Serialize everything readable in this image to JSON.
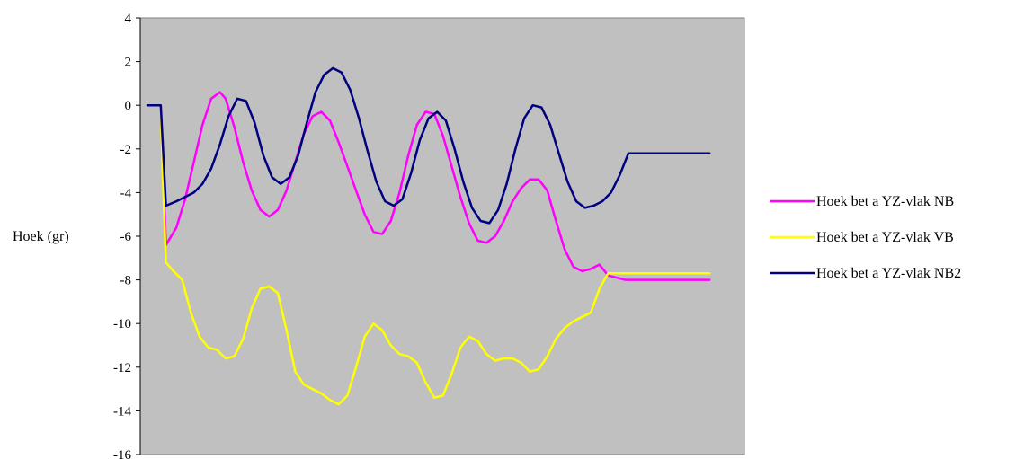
{
  "chart_data": {
    "type": "line",
    "title": "",
    "xlabel": "",
    "ylabel": "Hoek (gr)",
    "ylim": [
      -16,
      4
    ],
    "yticks": [
      4,
      2,
      0,
      -2,
      -4,
      -6,
      -8,
      -10,
      -12,
      -14,
      -16
    ],
    "xlim": [
      0,
      100
    ],
    "grid": false,
    "legend_position": "right",
    "plot_background": "#c0c0c0",
    "series": [
      {
        "name": "Hoek bet a YZ-vlak NB",
        "color": "#ff00ff",
        "x": [
          0,
          2.3,
          2.5,
          3.2,
          5,
          6.5,
          8,
          9.5,
          11,
          12.5,
          13.5,
          15,
          16.5,
          18,
          19.5,
          21,
          22.5,
          24,
          25.5,
          27,
          28.5,
          30,
          31.5,
          33,
          34.5,
          36,
          37.5,
          39,
          40.5,
          42,
          43.5,
          45,
          46.5,
          48,
          49.5,
          51,
          52.5,
          54,
          55.5,
          57,
          58.5,
          60,
          61.5,
          63,
          64.5,
          66,
          67.5,
          69,
          70.5,
          72,
          73.5,
          75,
          76.5,
          78,
          79.5,
          81,
          82.5,
          84,
          85.5,
          87,
          88.5,
          90,
          91.5,
          93,
          94.5,
          96,
          97
        ],
        "y": [
          0,
          0,
          -1.5,
          -6.4,
          -5.6,
          -4.3,
          -2.6,
          -0.9,
          0.3,
          0.6,
          0.3,
          -1.0,
          -2.6,
          -3.9,
          -4.8,
          -5.1,
          -4.8,
          -3.9,
          -2.6,
          -1.3,
          -0.5,
          -0.3,
          -0.7,
          -1.7,
          -2.8,
          -3.9,
          -5.0,
          -5.8,
          -5.9,
          -5.3,
          -4.0,
          -2.3,
          -0.9,
          -0.3,
          -0.4,
          -1.4,
          -2.8,
          -4.2,
          -5.4,
          -6.2,
          -6.3,
          -6.0,
          -5.3,
          -4.4,
          -3.8,
          -3.4,
          -3.4,
          -3.9,
          -5.3,
          -6.6,
          -7.4,
          -7.6,
          -7.5,
          -7.3,
          -7.8,
          -7.9,
          -8.0,
          -8.0,
          -8.0,
          -8.0,
          -8.0,
          -8.0,
          -8.0,
          -8.0,
          -8.0,
          -8.0,
          -8.0
        ]
      },
      {
        "name": "Hoek bet a YZ-vlak VB",
        "color": "#ffff00",
        "x": [
          0,
          2.3,
          2.6,
          3.2,
          4.5,
          6,
          7.5,
          9,
          10.5,
          12,
          13.5,
          15,
          16.5,
          18,
          19.5,
          21,
          22.5,
          24,
          25.5,
          27,
          28.5,
          30,
          31.5,
          33,
          34.5,
          36,
          37.5,
          39,
          40.5,
          42,
          43.5,
          45,
          46.5,
          48,
          49.5,
          51,
          52.5,
          54,
          55.5,
          57,
          58.5,
          60,
          61.5,
          63,
          64.5,
          66,
          67.5,
          69,
          70.5,
          72,
          73.5,
          75,
          76.5,
          78,
          79.5,
          81,
          82.5,
          84,
          85.5,
          87,
          88.5,
          90,
          91.5,
          93,
          94.5,
          96,
          97
        ],
        "y": [
          0,
          0,
          -3.0,
          -7.2,
          -7.6,
          -8.0,
          -9.5,
          -10.6,
          -11.1,
          -11.2,
          -11.6,
          -11.5,
          -10.7,
          -9.3,
          -8.4,
          -8.3,
          -8.6,
          -10.3,
          -12.2,
          -12.8,
          -13.0,
          -13.2,
          -13.5,
          -13.7,
          -13.3,
          -12.0,
          -10.6,
          -10.0,
          -10.3,
          -11.0,
          -11.4,
          -11.5,
          -11.8,
          -12.7,
          -13.4,
          -13.3,
          -12.3,
          -11.1,
          -10.6,
          -10.8,
          -11.4,
          -11.7,
          -11.6,
          -11.6,
          -11.8,
          -12.2,
          -12.1,
          -11.5,
          -10.7,
          -10.2,
          -9.9,
          -9.7,
          -9.5,
          -8.4,
          -7.7,
          -7.7,
          -7.7,
          -7.7,
          -7.7,
          -7.7,
          -7.7,
          -7.7,
          -7.7,
          -7.7,
          -7.7,
          -7.7,
          -7.7
        ]
      },
      {
        "name": "Hoek bet a YZ-vlak NB2",
        "color": "#000080",
        "x": [
          0,
          2.3,
          3.2,
          5,
          6.5,
          8,
          9.5,
          11,
          12.5,
          14,
          15.5,
          17,
          18.5,
          20,
          21.5,
          23,
          24.5,
          26,
          27.5,
          29,
          30.5,
          32,
          33.5,
          35,
          36.5,
          38,
          39.5,
          41,
          42.5,
          44,
          45.5,
          47,
          48.5,
          50,
          51.5,
          53,
          54.5,
          56,
          57.5,
          59,
          60.5,
          62,
          63.5,
          65,
          66.5,
          68,
          69.5,
          71,
          72.5,
          74,
          75.5,
          77,
          78.5,
          80,
          81.5,
          83,
          84.5,
          86,
          87.5,
          89,
          90.5,
          92,
          93.5,
          95,
          96.5,
          97
        ],
        "y": [
          0,
          0,
          -4.6,
          -4.4,
          -4.2,
          -4.0,
          -3.6,
          -2.9,
          -1.8,
          -0.5,
          0.3,
          0.2,
          -0.8,
          -2.3,
          -3.3,
          -3.6,
          -3.3,
          -2.3,
          -0.8,
          0.6,
          1.4,
          1.7,
          1.5,
          0.7,
          -0.6,
          -2.1,
          -3.5,
          -4.4,
          -4.6,
          -4.3,
          -3.1,
          -1.6,
          -0.6,
          -0.3,
          -0.7,
          -2.0,
          -3.5,
          -4.7,
          -5.3,
          -5.4,
          -4.8,
          -3.6,
          -2.0,
          -0.6,
          0,
          -0.1,
          -0.9,
          -2.2,
          -3.5,
          -4.4,
          -4.7,
          -4.6,
          -4.4,
          -4.0,
          -3.2,
          -2.2,
          -2.2,
          -2.2,
          -2.2,
          -2.2,
          -2.2,
          -2.2,
          -2.2,
          -2.2,
          -2.2,
          -2.2
        ]
      }
    ]
  }
}
